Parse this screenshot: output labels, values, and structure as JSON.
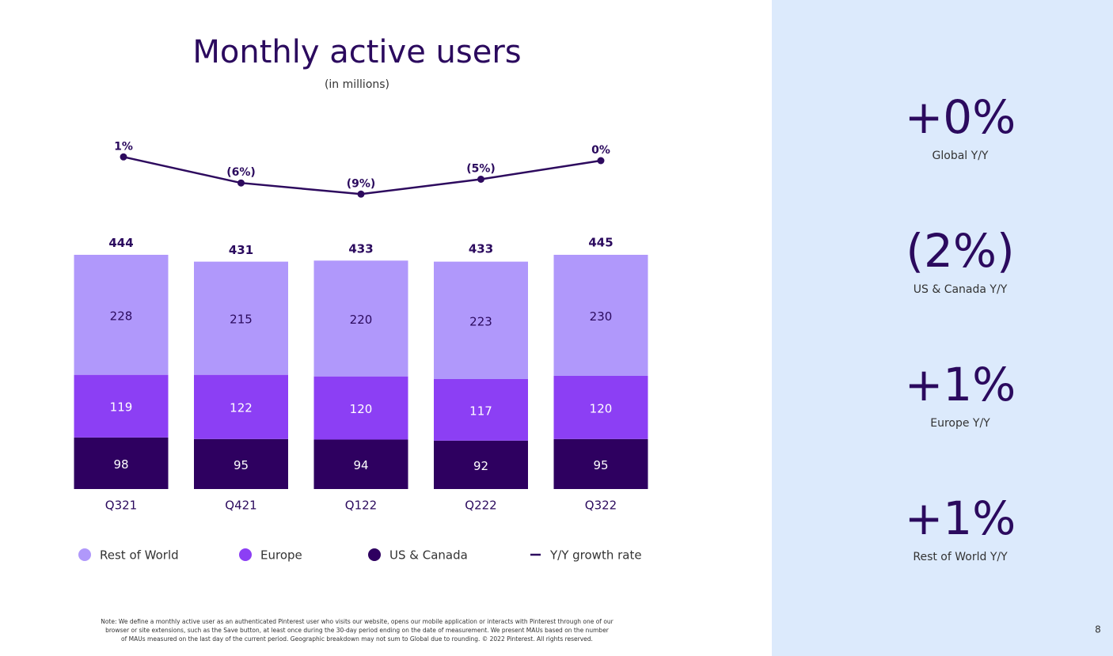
{
  "chart_data": {
    "type": "bar",
    "title": "Monthly active users",
    "subtitle": "(in millions)",
    "stacked": true,
    "categories": [
      "Q321",
      "Q421",
      "Q122",
      "Q222",
      "Q322"
    ],
    "series": [
      {
        "name": "US & Canada",
        "color": "#2e0060",
        "values": [
          98,
          95,
          94,
          92,
          95
        ]
      },
      {
        "name": "Europe",
        "color": "#8c3ff4",
        "values": [
          119,
          122,
          120,
          117,
          120
        ]
      },
      {
        "name": "Rest of World",
        "color": "#b098fb",
        "values": [
          228,
          215,
          220,
          223,
          230
        ]
      }
    ],
    "totals": [
      444,
      431,
      433,
      433,
      445
    ],
    "line": {
      "name": "Y/Y growth rate",
      "color": "#2d0a5e",
      "values": [
        1,
        -6,
        -9,
        -5,
        0
      ],
      "value_labels": [
        "1%",
        "(6%)",
        "(9%)",
        "(5%)",
        "0%"
      ]
    },
    "legend_order": [
      2,
      1,
      0
    ]
  },
  "side_stats": [
    {
      "value": "+0%",
      "label": "Global Y/Y"
    },
    {
      "value": "(2%)",
      "label": "US & Canada Y/Y"
    },
    {
      "value": "+1%",
      "label": "Europe Y/Y"
    },
    {
      "value": "+1%",
      "label": "Rest of World Y/Y"
    }
  ],
  "footnote": [
    "Note: We define a monthly active user as an authenticated Pinterest user who visits our website, opens our mobile application or interacts with Pinterest through one of our",
    "browser or site extensions, such as the Save button, at least once during the 30-day period ending on the date of measurement. We present MAUs based on the number",
    "of MAUs measured on the last day of the current period. Geographic breakdown may not sum to Global due to rounding. © 2022 Pinterest. All rights reserved."
  ],
  "page_number": "8"
}
